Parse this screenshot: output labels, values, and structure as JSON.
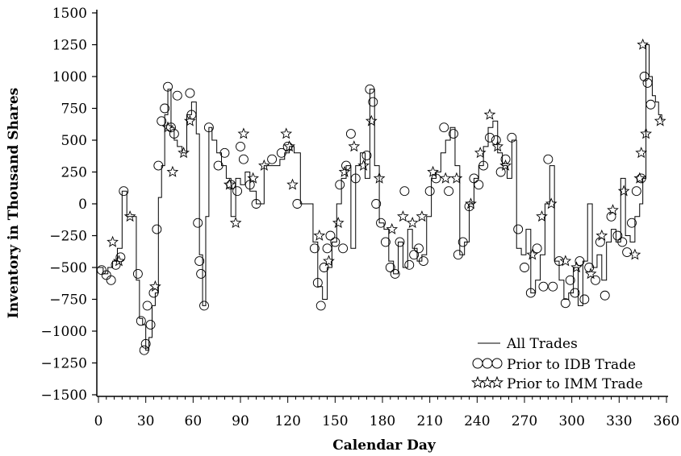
{
  "chart_data": {
    "type": "line",
    "xlabel": "Calendar Day",
    "ylabel": "Inventory in Thousand Shares",
    "xlim": [
      0,
      360
    ],
    "ylim": [
      -1500,
      1500
    ],
    "xticks": [
      0,
      30,
      60,
      90,
      120,
      150,
      180,
      210,
      240,
      270,
      300,
      330,
      360
    ],
    "yticks": [
      1500,
      1250,
      1000,
      750,
      500,
      250,
      0,
      -250,
      -500,
      -750,
      -1000,
      -1250,
      -1500
    ],
    "ytick_labels": [
      "1500",
      "1250",
      "1000",
      "750",
      "500",
      "250",
      "0",
      "−250",
      "−500",
      "−750",
      "−1000",
      "−1250",
      "−1500"
    ],
    "grid": false,
    "legend_position": "bottom-right",
    "series": [
      {
        "name": "All Trades",
        "marker": "line",
        "x": [
          0,
          3,
          6,
          9,
          12,
          15,
          18,
          21,
          24,
          26,
          28,
          30,
          32,
          34,
          36,
          38,
          40,
          42,
          44,
          46,
          48,
          50,
          53,
          56,
          59,
          62,
          64,
          66,
          68,
          70,
          72,
          75,
          78,
          81,
          84,
          87,
          90,
          93,
          96,
          100,
          105,
          110,
          115,
          118,
          121,
          124,
          128,
          132,
          136,
          139,
          142,
          145,
          148,
          151,
          154,
          157,
          160,
          163,
          166,
          169,
          172,
          175,
          178,
          181,
          184,
          187,
          190,
          193,
          196,
          199,
          202,
          205,
          208,
          211,
          214,
          217,
          220,
          223,
          226,
          229,
          232,
          235,
          238,
          241,
          244,
          247,
          250,
          253,
          256,
          259,
          262,
          265,
          268,
          271,
          274,
          277,
          280,
          283,
          286,
          289,
          292,
          295,
          298,
          301,
          304,
          307,
          310,
          313,
          316,
          319,
          322,
          325,
          328,
          331,
          334,
          337,
          340,
          343,
          345,
          347,
          349,
          351,
          353,
          355,
          357
        ],
        "y": [
          -500,
          -550,
          -500,
          -450,
          -350,
          100,
          -100,
          -100,
          -600,
          -900,
          -950,
          -1150,
          -1050,
          -800,
          -700,
          50,
          300,
          700,
          900,
          600,
          500,
          450,
          400,
          700,
          800,
          550,
          -400,
          -800,
          -100,
          600,
          500,
          400,
          300,
          200,
          -100,
          200,
          150,
          250,
          100,
          0,
          300,
          300,
          350,
          400,
          450,
          400,
          0,
          0,
          -300,
          -650,
          -750,
          -500,
          -300,
          0,
          200,
          300,
          -350,
          300,
          400,
          200,
          900,
          300,
          -150,
          -200,
          -450,
          -550,
          -300,
          -500,
          -200,
          -350,
          -450,
          -400,
          -100,
          200,
          250,
          400,
          500,
          600,
          300,
          -400,
          -300,
          0,
          200,
          300,
          450,
          600,
          650,
          400,
          300,
          200,
          500,
          -350,
          -400,
          -200,
          -700,
          -600,
          -400,
          0,
          300,
          -450,
          -600,
          -750,
          -700,
          -500,
          -800,
          -450,
          0,
          -500,
          -400,
          -600,
          -300,
          -200,
          -300,
          200,
          -250,
          -300,
          -100,
          0,
          200,
          1250,
          1000,
          850,
          800,
          700,
          650
        ]
      },
      {
        "name": "Prior to IDB Trade",
        "marker": "circle",
        "x": [
          2,
          5,
          8,
          11,
          14,
          16,
          25,
          27,
          29,
          30,
          31,
          33,
          35,
          37,
          38,
          40,
          42,
          44,
          46,
          48,
          50,
          58,
          59,
          63,
          64,
          65,
          67,
          70,
          76,
          80,
          84,
          88,
          90,
          92,
          96,
          100,
          110,
          116,
          120,
          126,
          137,
          139,
          141,
          143,
          145,
          147,
          150,
          153,
          155,
          157,
          160,
          163,
          170,
          172,
          174,
          176,
          179,
          182,
          185,
          188,
          191,
          194,
          197,
          200,
          203,
          206,
          210,
          214,
          219,
          222,
          225,
          228,
          231,
          235,
          238,
          241,
          244,
          248,
          252,
          255,
          258,
          262,
          266,
          270,
          274,
          278,
          282,
          285,
          288,
          292,
          296,
          299,
          302,
          305,
          308,
          311,
          315,
          318,
          321,
          325,
          329,
          332,
          335,
          338,
          341,
          344,
          346,
          348,
          350
        ],
        "y": [
          -520,
          -560,
          -600,
          -480,
          -420,
          100,
          -550,
          -920,
          -1150,
          -1100,
          -800,
          -950,
          -700,
          -200,
          300,
          650,
          750,
          920,
          600,
          550,
          850,
          870,
          700,
          -150,
          -450,
          -550,
          -800,
          600,
          300,
          400,
          150,
          100,
          450,
          350,
          150,
          0,
          350,
          400,
          450,
          0,
          -350,
          -620,
          -800,
          -500,
          -350,
          -250,
          -300,
          150,
          -350,
          300,
          550,
          200,
          380,
          900,
          800,
          0,
          -150,
          -300,
          -500,
          -550,
          -300,
          100,
          -480,
          -400,
          -350,
          -450,
          100,
          200,
          600,
          100,
          550,
          -400,
          -300,
          -20,
          200,
          150,
          300,
          520,
          500,
          250,
          350,
          520,
          -200,
          -500,
          -700,
          -350,
          -650,
          350,
          -650,
          -450,
          -780,
          -600,
          -700,
          -450,
          -750,
          -500,
          -600,
          -300,
          -720,
          -100,
          -250,
          -300,
          -380,
          -150,
          100,
          200,
          1000,
          950,
          780
        ]
      },
      {
        "name": "Prior to IMM Trade",
        "marker": "star",
        "x": [
          9,
          13,
          20,
          36,
          44,
          47,
          54,
          58,
          83,
          87,
          92,
          98,
          105,
          119,
          121,
          123,
          140,
          146,
          152,
          156,
          162,
          168,
          173,
          178,
          186,
          193,
          199,
          205,
          212,
          220,
          227,
          236,
          242,
          248,
          253,
          258,
          275,
          281,
          287,
          296,
          303,
          312,
          319,
          326,
          333,
          340,
          343,
          344,
          345,
          347,
          356
        ],
        "y": [
          -300,
          -450,
          -100,
          -650,
          600,
          250,
          400,
          650,
          150,
          -150,
          550,
          200,
          300,
          550,
          450,
          150,
          -250,
          -450,
          -150,
          250,
          450,
          300,
          650,
          200,
          -200,
          -100,
          -150,
          -100,
          250,
          200,
          200,
          0,
          400,
          700,
          450,
          300,
          -400,
          -100,
          0,
          -450,
          -500,
          -550,
          -250,
          -50,
          100,
          -400,
          200,
          400,
          1250,
          550,
          650
        ]
      }
    ]
  }
}
